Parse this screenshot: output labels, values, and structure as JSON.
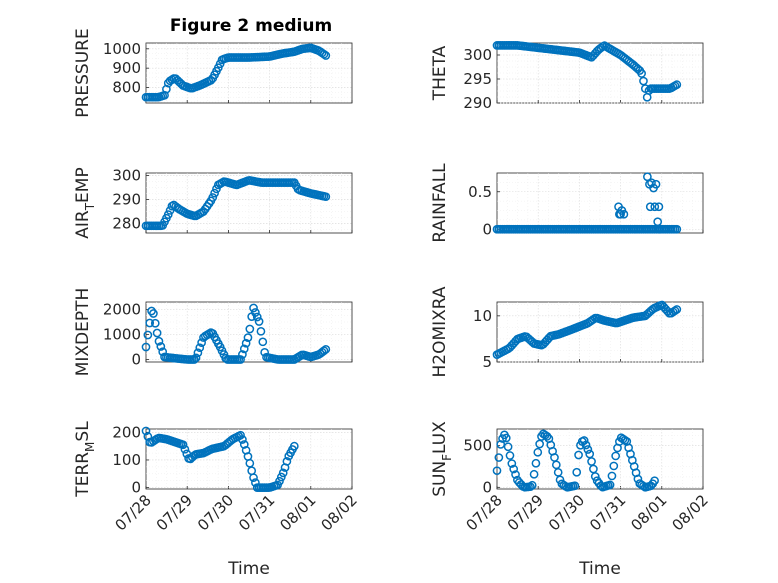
{
  "figure": {
    "title": "Figure 2 medium"
  },
  "colors": {
    "marker": "#0072BD",
    "axis": "#262626",
    "grid": "#d9d9d9"
  },
  "chart_data": [
    {
      "type": "scatter",
      "panel": "top-left",
      "ylabel": "PRESSURE",
      "ylabel_sub": "",
      "xlabel": "",
      "xlim": [
        "07/28",
        "08/02"
      ],
      "ylim": [
        720,
        1030
      ],
      "yticks": [
        800,
        900,
        1000
      ],
      "ytick_labels": [
        "800",
        "900",
        "1000"
      ],
      "xticks_labels_shown": false,
      "grid": true,
      "keypoints": [
        [
          0.0,
          750
        ],
        [
          0.3,
          750
        ],
        [
          0.45,
          760
        ],
        [
          0.55,
          830
        ],
        [
          0.7,
          850
        ],
        [
          0.9,
          810
        ],
        [
          1.1,
          795
        ],
        [
          1.3,
          810
        ],
        [
          1.6,
          840
        ],
        [
          1.75,
          900
        ],
        [
          1.85,
          945
        ],
        [
          2.0,
          955
        ],
        [
          2.5,
          955
        ],
        [
          3.0,
          960
        ],
        [
          3.3,
          975
        ],
        [
          3.6,
          985
        ],
        [
          3.8,
          1000
        ],
        [
          4.0,
          1005
        ],
        [
          4.2,
          990
        ],
        [
          4.4,
          960
        ]
      ]
    },
    {
      "type": "scatter",
      "panel": "top-right",
      "ylabel": "THETA",
      "ylabel_sub": "",
      "xlabel": "",
      "xlim": [
        "07/28",
        "08/02"
      ],
      "ylim": [
        290,
        302.5
      ],
      "yticks": [
        290,
        295,
        300
      ],
      "ytick_labels": [
        "290",
        "295",
        "300"
      ],
      "xticks_labels_shown": false,
      "grid": true,
      "keypoints": [
        [
          0.0,
          302
        ],
        [
          0.5,
          302
        ],
        [
          1.0,
          301.5
        ],
        [
          1.5,
          301
        ],
        [
          2.0,
          300.5
        ],
        [
          2.3,
          299.5
        ],
        [
          2.45,
          301
        ],
        [
          2.6,
          302
        ],
        [
          2.8,
          301
        ],
        [
          3.0,
          300
        ],
        [
          3.3,
          298
        ],
        [
          3.5,
          296.5
        ],
        [
          3.6,
          293
        ],
        [
          3.65,
          291
        ],
        [
          3.7,
          293
        ],
        [
          4.0,
          293
        ],
        [
          4.2,
          293
        ],
        [
          4.4,
          294
        ]
      ]
    },
    {
      "type": "scatter",
      "panel": "second-left",
      "ylabel": "AIR",
      "ylabel_sub": "T",
      "ylabel_rest": "EMP",
      "xlabel": "",
      "xlim": [
        "07/28",
        "08/02"
      ],
      "ylim": [
        276,
        301
      ],
      "yticks": [
        280,
        290,
        300
      ],
      "ytick_labels": [
        "280",
        "290",
        "300"
      ],
      "xticks_labels_shown": false,
      "grid": true,
      "keypoints": [
        [
          0.0,
          279
        ],
        [
          0.4,
          279
        ],
        [
          0.55,
          284
        ],
        [
          0.65,
          288
        ],
        [
          0.8,
          286
        ],
        [
          1.0,
          284
        ],
        [
          1.2,
          283
        ],
        [
          1.4,
          285
        ],
        [
          1.6,
          290
        ],
        [
          1.75,
          296
        ],
        [
          1.9,
          297.5
        ],
        [
          2.2,
          296
        ],
        [
          2.5,
          298
        ],
        [
          2.8,
          297
        ],
        [
          3.3,
          297
        ],
        [
          3.6,
          297
        ],
        [
          3.7,
          294
        ],
        [
          4.0,
          292.5
        ],
        [
          4.4,
          291
        ]
      ]
    },
    {
      "type": "scatter",
      "panel": "second-right",
      "ylabel": "RAINFALL",
      "ylabel_sub": "",
      "xlabel": "",
      "xlim": [
        "07/28",
        "08/02"
      ],
      "ylim": [
        -0.05,
        0.75
      ],
      "yticks": [
        0,
        0.5
      ],
      "ytick_labels": [
        "0",
        "0.5"
      ],
      "xticks_labels_shown": false,
      "grid": true,
      "keypoints": [
        [
          0.0,
          0
        ],
        [
          4.4,
          0
        ]
      ],
      "extra_points": [
        [
          2.95,
          0.3
        ],
        [
          2.97,
          0.2
        ],
        [
          3.0,
          0.2
        ],
        [
          3.03,
          0.25
        ],
        [
          3.08,
          0.2
        ],
        [
          3.65,
          0.7
        ],
        [
          3.7,
          0.6
        ],
        [
          3.72,
          0.3
        ],
        [
          3.75,
          0.62
        ],
        [
          3.8,
          0.55
        ],
        [
          3.83,
          0.3
        ],
        [
          3.86,
          0.6
        ],
        [
          3.9,
          0.1
        ],
        [
          3.93,
          0.3
        ],
        [
          3.95,
          0.0
        ]
      ]
    },
    {
      "type": "scatter",
      "panel": "third-left",
      "ylabel": "MIXDEPTH",
      "ylabel_sub": "",
      "xlabel": "",
      "xlim": [
        "07/28",
        "08/02"
      ],
      "ylim": [
        -100,
        2300
      ],
      "yticks": [
        0,
        1000,
        2000
      ],
      "ytick_labels": [
        "0",
        "1000",
        "2000"
      ],
      "xticks_labels_shown": false,
      "grid": true,
      "keypoints": [
        [
          0.0,
          500
        ],
        [
          0.15,
          2100
        ],
        [
          0.3,
          800
        ],
        [
          0.45,
          100
        ],
        [
          0.7,
          50
        ],
        [
          1.0,
          0
        ],
        [
          1.2,
          0
        ],
        [
          1.4,
          900
        ],
        [
          1.6,
          1100
        ],
        [
          1.8,
          500
        ],
        [
          1.95,
          0
        ],
        [
          2.3,
          0
        ],
        [
          2.5,
          1000
        ],
        [
          2.6,
          2100
        ],
        [
          2.75,
          1500
        ],
        [
          2.9,
          100
        ],
        [
          3.2,
          0
        ],
        [
          3.6,
          0
        ],
        [
          3.8,
          200
        ],
        [
          4.0,
          100
        ],
        [
          4.2,
          200
        ],
        [
          4.4,
          450
        ]
      ]
    },
    {
      "type": "scatter",
      "panel": "third-right",
      "ylabel": "H2OMIXRA",
      "ylabel_sub": "",
      "xlabel": "",
      "xlim": [
        "07/28",
        "08/02"
      ],
      "ylim": [
        5,
        11.5
      ],
      "yticks": [
        5,
        10
      ],
      "ytick_labels": [
        "5",
        "10"
      ],
      "xticks_labels_shown": false,
      "grid": true,
      "keypoints": [
        [
          0.0,
          5.8
        ],
        [
          0.3,
          6.5
        ],
        [
          0.5,
          7.5
        ],
        [
          0.7,
          7.8
        ],
        [
          0.9,
          7.0
        ],
        [
          1.1,
          6.8
        ],
        [
          1.3,
          7.8
        ],
        [
          1.5,
          8.0
        ],
        [
          1.8,
          8.5
        ],
        [
          2.2,
          9.2
        ],
        [
          2.4,
          9.8
        ],
        [
          2.6,
          9.5
        ],
        [
          2.9,
          9.2
        ],
        [
          3.3,
          9.8
        ],
        [
          3.6,
          10.0
        ],
        [
          3.8,
          10.8
        ],
        [
          4.0,
          11.2
        ],
        [
          4.2,
          10.2
        ],
        [
          4.4,
          10.8
        ]
      ]
    },
    {
      "type": "scatter",
      "panel": "bottom-left",
      "ylabel": "TERR",
      "ylabel_sub": "M",
      "ylabel_rest": "SL",
      "xlabel": "Time",
      "xlim": [
        "07/28",
        "08/02"
      ],
      "ylim": [
        -5,
        212
      ],
      "yticks": [
        0,
        100,
        200
      ],
      "ytick_labels": [
        "0",
        "100",
        "200"
      ],
      "x_tick_labels": [
        "07/28",
        "07/29",
        "07/30",
        "07/31",
        "08/01",
        "08/02"
      ],
      "xticks_labels_shown": true,
      "grid": true,
      "keypoints": [
        [
          0.0,
          205
        ],
        [
          0.1,
          160
        ],
        [
          0.3,
          180
        ],
        [
          0.5,
          175
        ],
        [
          0.7,
          165
        ],
        [
          0.9,
          155
        ],
        [
          1.05,
          100
        ],
        [
          1.2,
          120
        ],
        [
          1.4,
          125
        ],
        [
          1.6,
          140
        ],
        [
          1.9,
          150
        ],
        [
          2.1,
          175
        ],
        [
          2.3,
          190
        ],
        [
          2.4,
          150
        ],
        [
          2.5,
          100
        ],
        [
          2.6,
          40
        ],
        [
          2.7,
          0
        ],
        [
          3.0,
          0
        ],
        [
          3.2,
          10
        ],
        [
          3.35,
          60
        ],
        [
          3.45,
          110
        ],
        [
          3.6,
          150
        ]
      ]
    },
    {
      "type": "scatter",
      "panel": "bottom-right",
      "ylabel": "SUN",
      "ylabel_sub": "F",
      "ylabel_rest": "LUX",
      "xlabel": "Time",
      "xlim": [
        "07/28",
        "08/02"
      ],
      "ylim": [
        -20,
        700
      ],
      "yticks": [
        0,
        500
      ],
      "ytick_labels": [
        "0",
        "500"
      ],
      "x_tick_labels": [
        "07/28",
        "07/29",
        "07/30",
        "07/31",
        "08/01",
        "08/02"
      ],
      "xticks_labels_shown": true,
      "grid": true,
      "keypoints": [
        [
          0.0,
          200
        ],
        [
          0.1,
          550
        ],
        [
          0.2,
          650
        ],
        [
          0.35,
          300
        ],
        [
          0.5,
          80
        ],
        [
          0.65,
          0
        ],
        [
          0.85,
          10
        ],
        [
          1.0,
          450
        ],
        [
          1.1,
          650
        ],
        [
          1.25,
          600
        ],
        [
          1.4,
          350
        ],
        [
          1.55,
          50
        ],
        [
          1.7,
          0
        ],
        [
          1.9,
          20
        ],
        [
          2.0,
          480
        ],
        [
          2.1,
          580
        ],
        [
          2.25,
          400
        ],
        [
          2.4,
          100
        ],
        [
          2.55,
          0
        ],
        [
          2.75,
          30
        ],
        [
          2.9,
          430
        ],
        [
          3.0,
          600
        ],
        [
          3.15,
          550
        ],
        [
          3.3,
          300
        ],
        [
          3.45,
          50
        ],
        [
          3.6,
          0
        ],
        [
          3.75,
          20
        ],
        [
          3.85,
          100
        ]
      ]
    }
  ]
}
